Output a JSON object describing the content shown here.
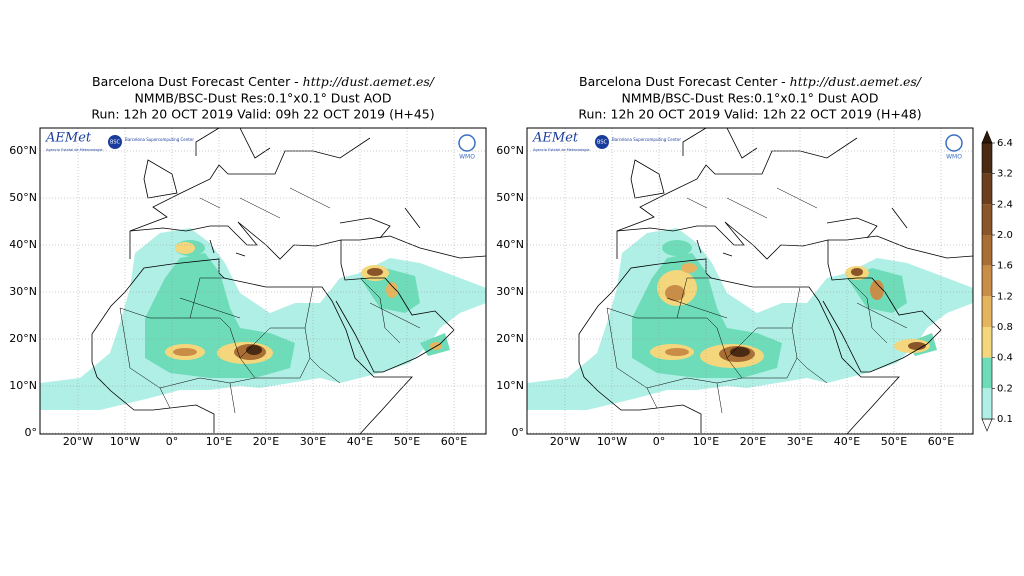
{
  "panels": [
    {
      "title_1": "Barcelona Dust Forecast Center - ",
      "title_url": "http://dust.aemet.es/",
      "title_2": "NMMB/BSC-Dust   Res:0.1°x0.1°   Dust AOD",
      "title_3": "Run: 12h 20 OCT 2019   Valid: 09h 22 OCT 2019 (H+45)"
    },
    {
      "title_1": "Barcelona Dust Forecast Center - ",
      "title_url": "http://dust.aemet.es/",
      "title_2": "NMMB/BSC-Dust   Res:0.1°x0.1°   Dust AOD",
      "title_3": "Run: 12h 20 OCT 2019   Valid: 12h 22 OCT 2019 (H+48)"
    }
  ],
  "lat_labels": [
    "60°N",
    "50°N",
    "40°N",
    "30°N",
    "20°N",
    "10°N",
    "0°"
  ],
  "lon_labels": [
    "20°W",
    "10°W",
    "0°",
    "10°E",
    "20°E",
    "30°E",
    "40°E",
    "50°E",
    "60°E"
  ],
  "logos": {
    "aemet": "AEMet",
    "aemet_sub": "Agencia Estatal de Meteorología",
    "bsc": "BSC",
    "bsc_name": "Barcelona Supercomputing Center",
    "wmo": "WMO"
  },
  "colorbar": {
    "ticks": [
      6.4,
      3.2,
      2.4,
      {
        "value": 2,
        "label": "2.0"
      },
      1.6,
      1.2,
      0.8,
      0.4,
      0.2,
      0.1
    ],
    "colors": [
      "#4a2a12",
      "#6b3f1d",
      "#8a5528",
      "#a86e34",
      "#c98d48",
      "#e4b45e",
      "#f4d77c",
      "#6fdcb9",
      "#b0efe5"
    ],
    "over_color": "#2e1a0b"
  }
}
